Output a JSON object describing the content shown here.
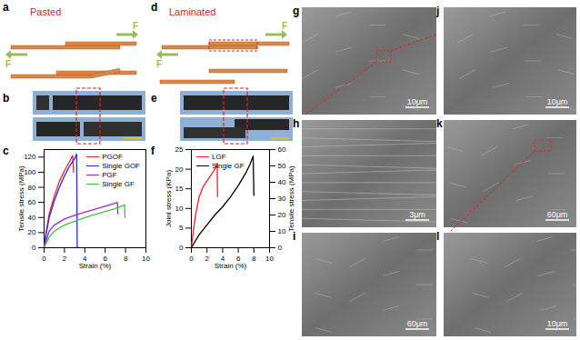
{
  "panel_labels": [
    "a",
    "b",
    "c",
    "d",
    "e",
    "f",
    "g",
    "h",
    "i",
    "j",
    "k",
    "l"
  ],
  "schematics": {
    "a": {
      "title": "Pasted",
      "forces": [
        "F",
        "F"
      ]
    },
    "d": {
      "title": "Laminated",
      "forces": [
        "F",
        "F"
      ]
    }
  },
  "sem_images": {
    "g": "10μm",
    "h": "3μm",
    "i": "60μm",
    "j": "10μm",
    "k": "60μm",
    "l": "10μm"
  },
  "chart_data": [
    {
      "type": "line",
      "panel": "c",
      "x_label": "Strain (%)",
      "y_label": "Tensile stress (MPa)",
      "xlim": [
        0,
        10
      ],
      "xticks": [
        0,
        2,
        4,
        6,
        8,
        10
      ],
      "ylim": [
        0,
        130
      ],
      "yticks": [
        0,
        20,
        40,
        60,
        80,
        100,
        120
      ],
      "legend": "top-right",
      "series": [
        {
          "name": "PGOF",
          "color": "#e8232b",
          "x": [
            0,
            0.2,
            0.5,
            1,
            1.5,
            2,
            2.5,
            2.8,
            2.9
          ],
          "values": [
            0,
            20,
            45,
            68,
            88,
            102,
            114,
            122,
            100
          ]
        },
        {
          "name": "Single GOF",
          "color": "#2b2bf0",
          "x": [
            0,
            0.2,
            0.5,
            1,
            1.5,
            2,
            2.5,
            3,
            3.2,
            3.25
          ],
          "values": [
            0,
            18,
            40,
            62,
            80,
            95,
            108,
            118,
            124,
            0
          ]
        },
        {
          "name": "PGF",
          "color": "#a324d8",
          "x": [
            0,
            0.5,
            1,
            2,
            3,
            4,
            5,
            6,
            7,
            7.2,
            7.25
          ],
          "values": [
            0,
            22,
            30,
            38,
            43,
            47,
            51,
            55,
            59,
            60,
            45
          ]
        },
        {
          "name": "Single GF",
          "color": "#3cc43c",
          "x": [
            0,
            0.5,
            1,
            2,
            3,
            4,
            5,
            6,
            7,
            7.8,
            7.9,
            7.95
          ],
          "values": [
            0,
            14,
            22,
            30,
            35,
            40,
            44,
            48,
            52,
            56,
            57,
            40
          ]
        }
      ]
    },
    {
      "type": "line",
      "panel": "f",
      "x_label": "Strain (%)",
      "y_label": "Joint stress (KPa)",
      "y2_label": "Tensile stress (MPa)",
      "xlim": [
        0,
        10
      ],
      "xticks": [
        0,
        2,
        4,
        6,
        8,
        10
      ],
      "ylim": [
        0,
        25
      ],
      "yticks": [
        0,
        5,
        10,
        15,
        20,
        25
      ],
      "y2lim": [
        0,
        60
      ],
      "y2ticks": [
        0,
        10,
        20,
        30,
        40,
        50,
        60
      ],
      "legend": "top-left",
      "series": [
        {
          "name": "LGF",
          "color": "#e8232b",
          "axis": "y",
          "x": [
            0,
            0.3,
            0.6,
            1,
            1.5,
            2,
            2.5,
            3,
            3.3,
            3.35
          ],
          "values": [
            0,
            5,
            9,
            13,
            15.5,
            17,
            18.5,
            20,
            21.5,
            13
          ]
        },
        {
          "name": "Single GF",
          "color": "#000000",
          "axis": "y2",
          "x": [
            0,
            1,
            2,
            3,
            4,
            5,
            6,
            7,
            7.5,
            7.9,
            8.0
          ],
          "values": [
            0,
            8,
            14,
            20,
            25,
            31,
            38,
            46,
            51,
            56,
            32
          ]
        }
      ]
    }
  ]
}
